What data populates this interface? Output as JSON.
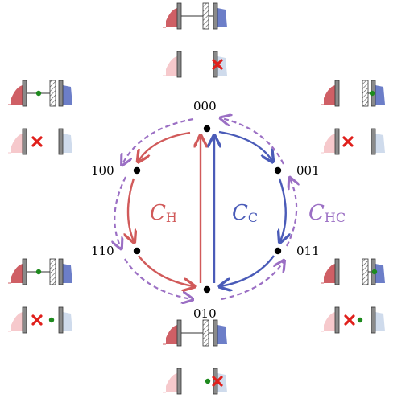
{
  "nodes": [
    {
      "id": "n000",
      "label": "000"
    },
    {
      "id": "n001",
      "label": "001"
    },
    {
      "id": "n011",
      "label": "011"
    },
    {
      "id": "n010",
      "label": "010"
    },
    {
      "id": "n110",
      "label": "110"
    },
    {
      "id": "n100",
      "label": "100"
    }
  ],
  "cycles": {
    "hot": {
      "symbol": "C",
      "sub": "H",
      "color": "#d15a5a"
    },
    "cold": {
      "symbol": "C",
      "sub": "C",
      "color": "#4a5bb8"
    },
    "hot_cold": {
      "symbol": "C",
      "sub": "HC",
      "color": "#9b6fc4"
    }
  },
  "colors": {
    "hot_reservoir": "#cf5f65",
    "hot_reservoir_light": "#f6c9cc",
    "cold_reservoir": "#6c7ec8",
    "cold_reservoir_light": "#cfdbec",
    "wall": "#8a8a8a",
    "junction": "#1e8a1e",
    "cross": "#e0201c"
  },
  "icons": {
    "cross": "x-mark-icon",
    "junction": "green-dot-icon",
    "piston": "hatched-piston-icon"
  }
}
